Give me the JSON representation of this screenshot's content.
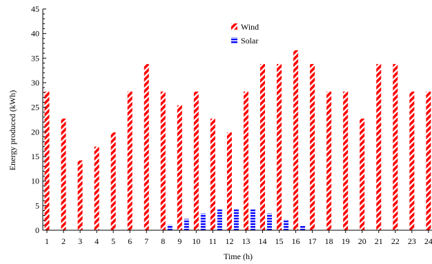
{
  "chart_data": {
    "type": "bar",
    "xlabel": "Time (h)",
    "ylabel": "Energy produced (kWh)",
    "ylim": [
      0,
      45
    ],
    "yticks": [
      0,
      5,
      10,
      15,
      20,
      25,
      30,
      35,
      40,
      45
    ],
    "categories": [
      "1",
      "2",
      "3",
      "4",
      "5",
      "6",
      "7",
      "8",
      "9",
      "10",
      "11",
      "12",
      "13",
      "14",
      "15",
      "16",
      "17",
      "18",
      "19",
      "20",
      "21",
      "22",
      "23",
      "24"
    ],
    "legend_position": "top-center",
    "series": [
      {
        "name": "Wind",
        "color": "#ff0000",
        "pattern": "diagonal-hatch",
        "values": [
          28.2,
          22.7,
          14.2,
          17.0,
          19.9,
          28.2,
          33.8,
          28.2,
          25.4,
          28.2,
          22.7,
          19.9,
          28.2,
          33.8,
          33.8,
          36.6,
          33.8,
          28.2,
          28.2,
          22.7,
          33.8,
          33.8,
          28.2,
          28.2
        ]
      },
      {
        "name": "Solar",
        "color": "#0000ff",
        "pattern": "horizontal-dash",
        "values": [
          0,
          0,
          0,
          0,
          0,
          0,
          0,
          1.1,
          2.3,
          3.4,
          4.4,
          4.4,
          4.4,
          3.4,
          2.2,
          0.9,
          0,
          0,
          0,
          0,
          0,
          0,
          0,
          0
        ]
      }
    ]
  }
}
